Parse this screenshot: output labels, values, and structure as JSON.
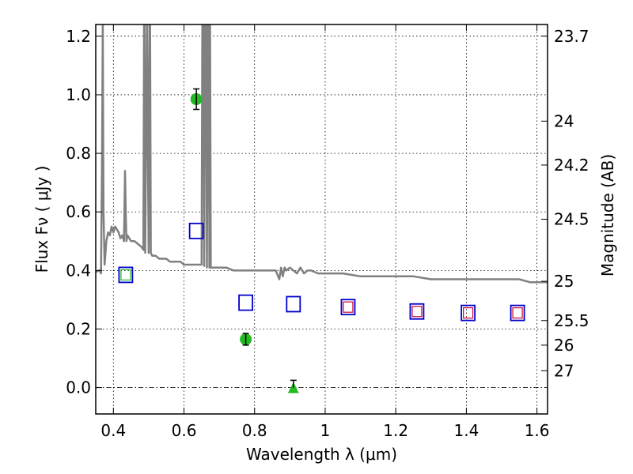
{
  "chart_data": {
    "type": "scatter",
    "title": "",
    "xlabel": "Wavelength  λ (μm)",
    "ylabel": "Flux  Fν  ( μJy )",
    "y2label": "Magnitude (AB)",
    "xlim": [
      0.35,
      1.63
    ],
    "ylim": [
      -0.09,
      1.24
    ],
    "grid": true,
    "x_ticks": [
      {
        "value": 0.4,
        "label": "0.4"
      },
      {
        "value": 0.6,
        "label": "0.6"
      },
      {
        "value": 0.8,
        "label": "0.8"
      },
      {
        "value": 1.0,
        "label": "1"
      },
      {
        "value": 1.2,
        "label": "1.2"
      },
      {
        "value": 1.4,
        "label": "1.4"
      },
      {
        "value": 1.6,
        "label": "1.6"
      }
    ],
    "y_ticks": [
      {
        "value": 0.0,
        "label": "0.0"
      },
      {
        "value": 0.2,
        "label": "0.2"
      },
      {
        "value": 0.4,
        "label": "0.4"
      },
      {
        "value": 0.6,
        "label": "0.6"
      },
      {
        "value": 0.8,
        "label": "0.8"
      },
      {
        "value": 1.0,
        "label": "1.0"
      },
      {
        "value": 1.2,
        "label": "1.2"
      }
    ],
    "mag_ticks": [
      {
        "label": "23.7",
        "flux": 1.2
      },
      {
        "label": "24",
        "flux": 0.91
      },
      {
        "label": "24.2",
        "flux": 0.76
      },
      {
        "label": "24.5",
        "flux": 0.575
      },
      {
        "label": "25",
        "flux": 0.363
      },
      {
        "label": "25.5",
        "flux": 0.229
      },
      {
        "label": "26",
        "flux": 0.145
      },
      {
        "label": "27",
        "flux": 0.0575
      }
    ],
    "colors": {
      "spectrum": "#808080",
      "detections": "#22bb22",
      "model_boxes": "#0000cc",
      "model_inner": "#cc0033"
    },
    "series": [
      {
        "kind": "detections",
        "points": [
          {
            "x": 0.635,
            "y": 0.985,
            "err": 0.035
          },
          {
            "x": 0.775,
            "y": 0.165,
            "err": 0.02
          }
        ]
      },
      {
        "kind": "upper-limit",
        "points": [
          {
            "x": 0.91,
            "y": 0.0,
            "err": 0.025
          }
        ]
      },
      {
        "kind": "model-boxes",
        "points": [
          {
            "x": 0.435,
            "y": 0.385
          },
          {
            "x": 0.635,
            "y": 0.535
          },
          {
            "x": 0.775,
            "y": 0.29
          },
          {
            "x": 0.91,
            "y": 0.285
          },
          {
            "x": 1.065,
            "y": 0.275
          },
          {
            "x": 1.26,
            "y": 0.26
          },
          {
            "x": 1.405,
            "y": 0.255
          },
          {
            "x": 1.545,
            "y": 0.255
          }
        ]
      },
      {
        "kind": "model-inner",
        "points": [
          {
            "x": 0.435,
            "y": 0.385,
            "color": "#22bb22"
          },
          {
            "x": 1.065,
            "y": 0.275,
            "color": "#cc0033"
          },
          {
            "x": 1.26,
            "y": 0.26,
            "color": "#cc0033"
          },
          {
            "x": 1.405,
            "y": 0.255,
            "color": "#cc0033"
          },
          {
            "x": 1.545,
            "y": 0.255,
            "color": "#cc0033"
          }
        ]
      },
      {
        "kind": "spectrum",
        "x": [
          0.35,
          0.36,
          0.365,
          0.368,
          0.37,
          0.372,
          0.375,
          0.38,
          0.385,
          0.39,
          0.395,
          0.4,
          0.405,
          0.41,
          0.415,
          0.42,
          0.425,
          0.43,
          0.433,
          0.435,
          0.437,
          0.44,
          0.445,
          0.45,
          0.46,
          0.47,
          0.48,
          0.485,
          0.487,
          0.488,
          0.49,
          0.495,
          0.5,
          0.502,
          0.504,
          0.506,
          0.51,
          0.52,
          0.53,
          0.54,
          0.55,
          0.56,
          0.57,
          0.58,
          0.59,
          0.6,
          0.61,
          0.62,
          0.63,
          0.64,
          0.65,
          0.652,
          0.655,
          0.657,
          0.66,
          0.663,
          0.665,
          0.668,
          0.67,
          0.672,
          0.674,
          0.676,
          0.68,
          0.69,
          0.7,
          0.72,
          0.74,
          0.76,
          0.78,
          0.8,
          0.82,
          0.84,
          0.86,
          0.87,
          0.875,
          0.88,
          0.885,
          0.89,
          0.9,
          0.91,
          0.92,
          0.93,
          0.94,
          0.95,
          0.96,
          0.98,
          1.0,
          1.05,
          1.1,
          1.15,
          1.2,
          1.25,
          1.3,
          1.35,
          1.4,
          1.45,
          1.5,
          1.55,
          1.58,
          1.6,
          1.63
        ],
        "y": [
          0.395,
          0.4,
          0.39,
          0.8,
          1.24,
          0.6,
          0.42,
          0.5,
          0.53,
          0.52,
          0.55,
          0.53,
          0.55,
          0.54,
          0.53,
          0.51,
          0.52,
          0.5,
          0.74,
          0.6,
          0.5,
          0.52,
          0.51,
          0.5,
          0.5,
          0.49,
          0.48,
          0.47,
          1.24,
          1.24,
          0.46,
          1.24,
          0.46,
          1.24,
          1.24,
          0.46,
          0.45,
          0.45,
          0.44,
          0.44,
          0.44,
          0.43,
          0.43,
          0.43,
          0.43,
          0.42,
          0.42,
          0.42,
          0.42,
          0.42,
          0.42,
          1.24,
          1.24,
          0.415,
          1.24,
          1.24,
          0.41,
          1.24,
          1.24,
          0.41,
          1.24,
          0.41,
          0.41,
          0.41,
          0.41,
          0.41,
          0.4,
          0.4,
          0.4,
          0.4,
          0.4,
          0.4,
          0.4,
          0.37,
          0.41,
          0.38,
          0.41,
          0.4,
          0.41,
          0.4,
          0.39,
          0.41,
          0.39,
          0.4,
          0.4,
          0.39,
          0.39,
          0.39,
          0.38,
          0.38,
          0.38,
          0.38,
          0.37,
          0.37,
          0.37,
          0.37,
          0.37,
          0.37,
          0.36,
          0.36,
          0.36
        ]
      }
    ]
  }
}
